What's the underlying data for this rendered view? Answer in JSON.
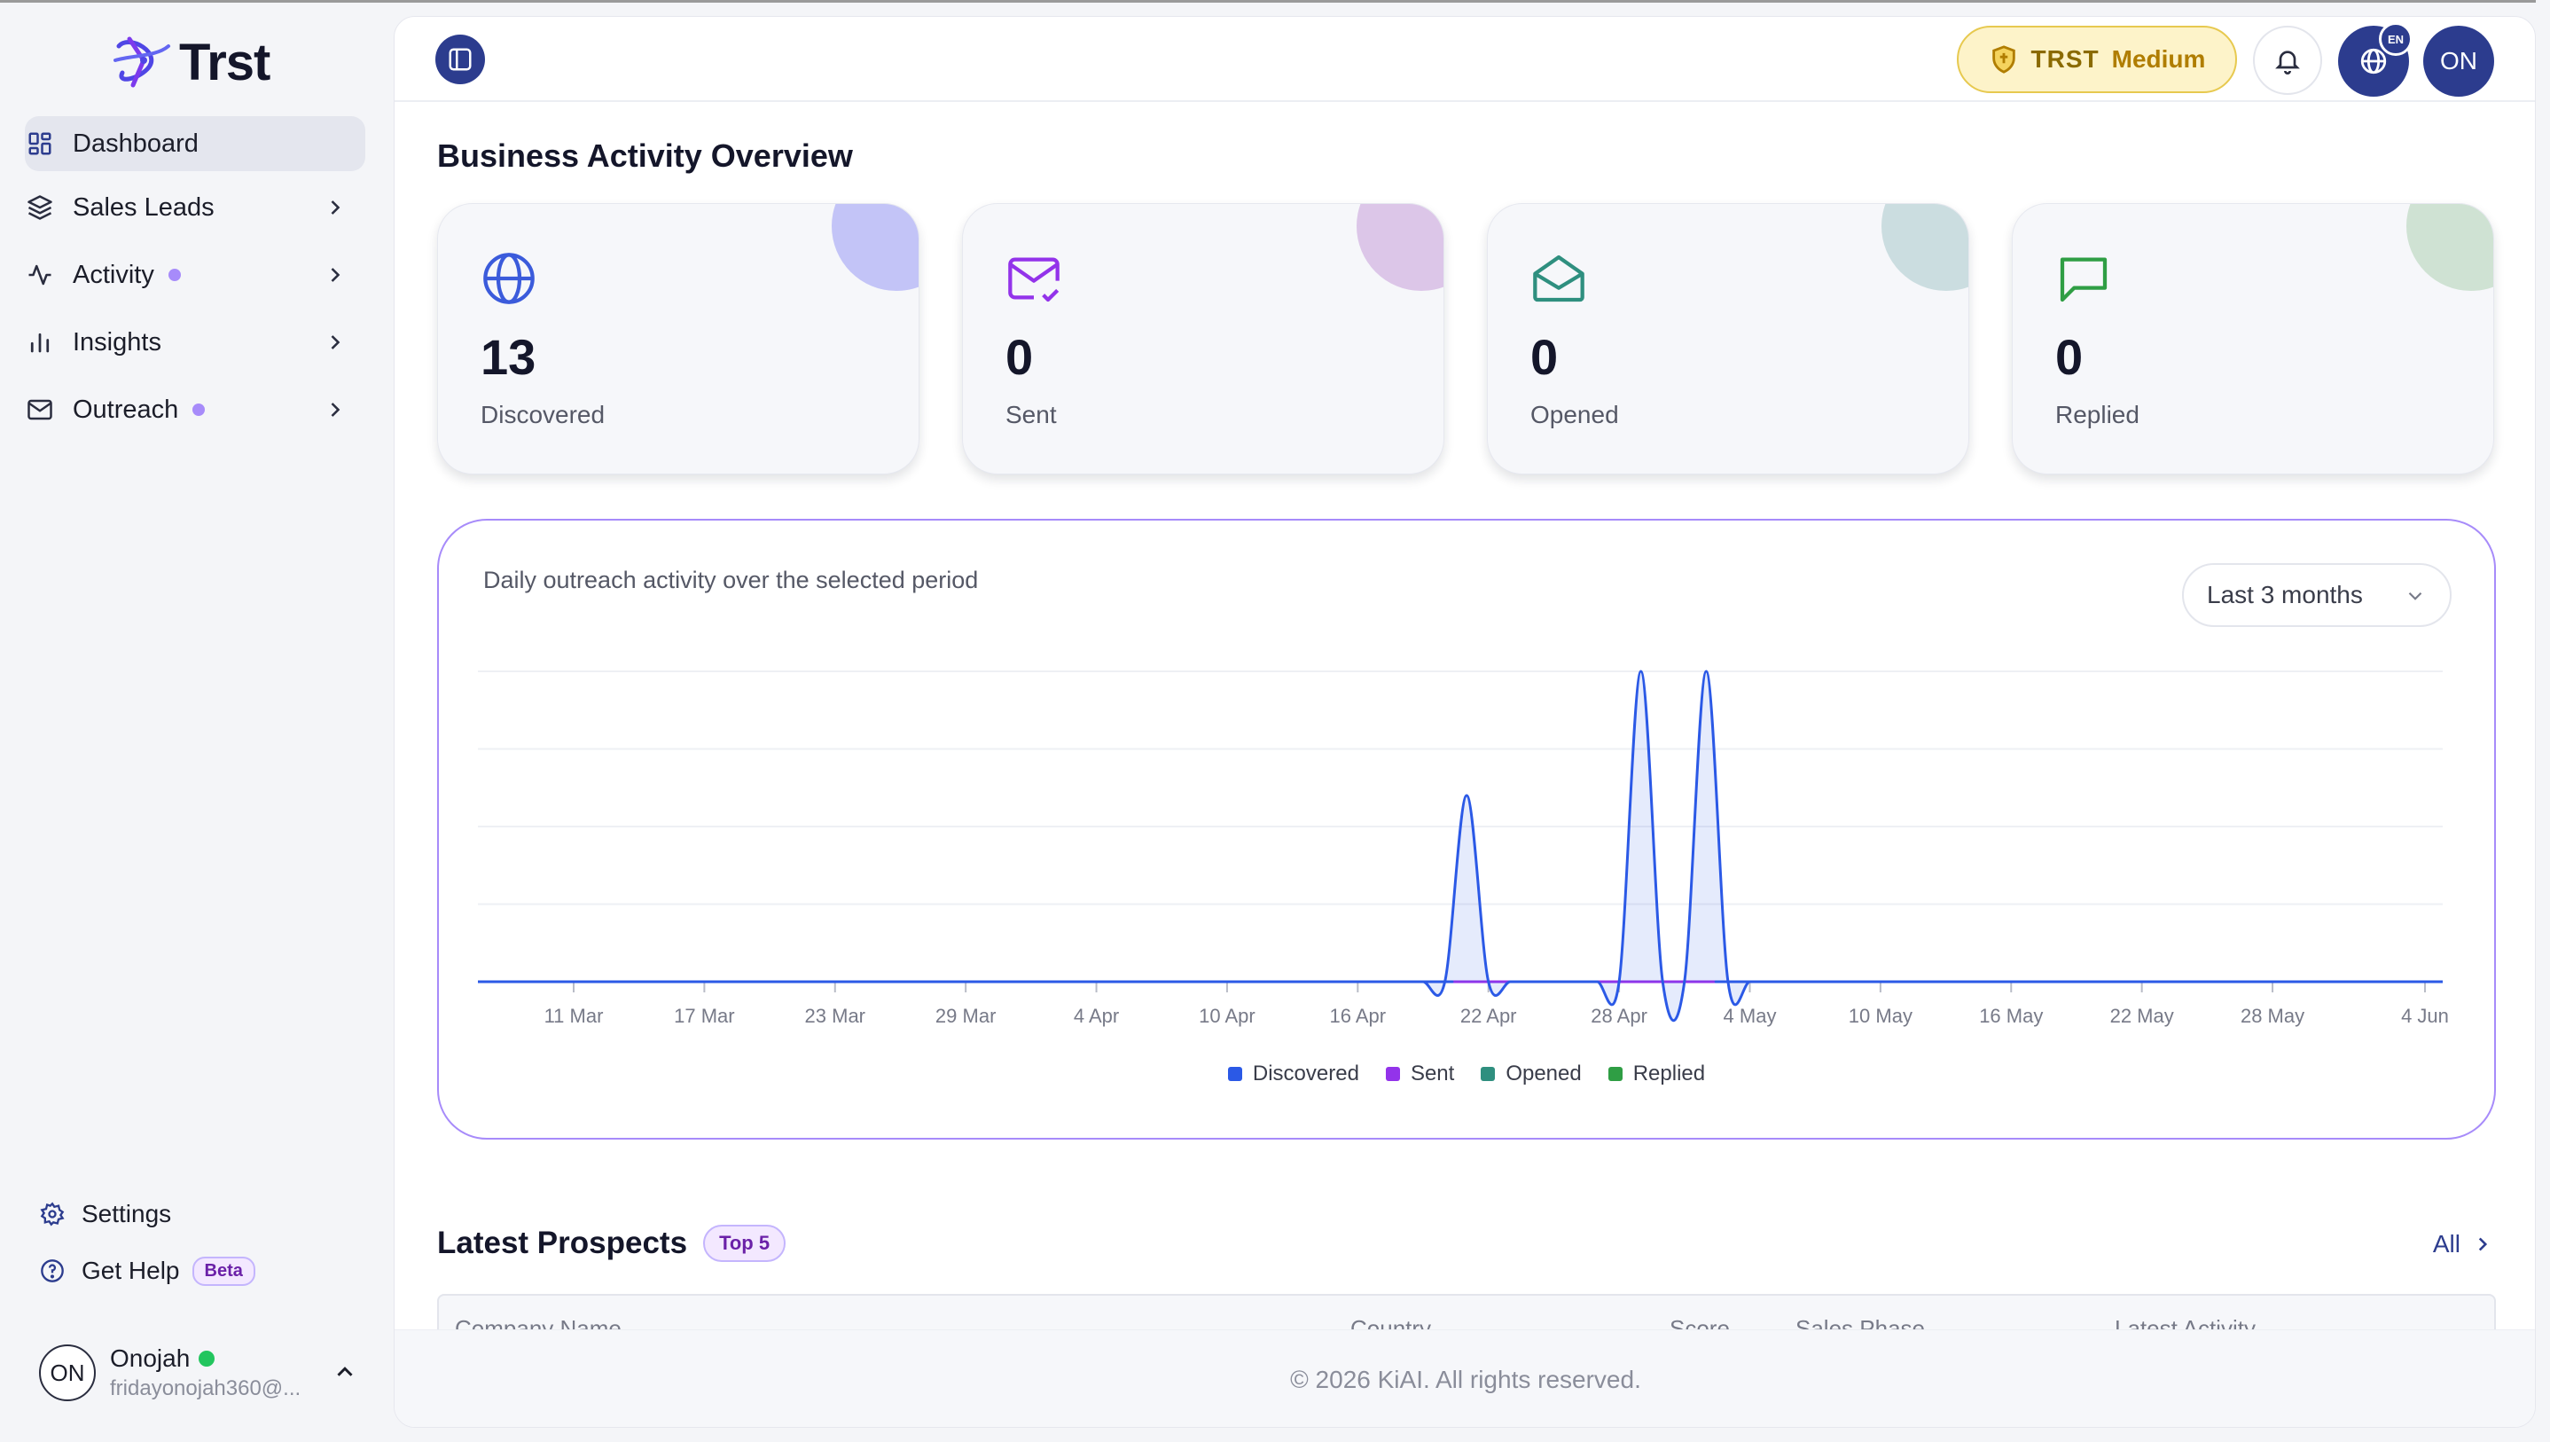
{
  "brand": {
    "name": "Trst"
  },
  "sidebar": {
    "items": [
      {
        "label": "Dashboard",
        "icon": "dashboard-icon",
        "active": true,
        "has_dot": false,
        "has_chevron": false
      },
      {
        "label": "Sales Leads",
        "icon": "layers-icon",
        "active": false,
        "has_dot": false,
        "has_chevron": true
      },
      {
        "label": "Activity",
        "icon": "activity-icon",
        "active": false,
        "has_dot": true,
        "has_chevron": true
      },
      {
        "label": "Insights",
        "icon": "bar-chart-icon",
        "active": false,
        "has_dot": false,
        "has_chevron": true
      },
      {
        "label": "Outreach",
        "icon": "mail-icon",
        "active": false,
        "has_dot": true,
        "has_chevron": true
      }
    ],
    "bottom": {
      "settings": "Settings",
      "help": "Get Help",
      "help_badge": "Beta"
    },
    "user": {
      "initials": "ON",
      "name": "Onojah",
      "email": "fridayonojah360@..."
    }
  },
  "header": {
    "plan_name": "TRST",
    "plan_tier": "Medium",
    "lang_code": "EN",
    "avatar_initials": "ON"
  },
  "overview": {
    "title": "Business Activity Overview",
    "cards": [
      {
        "value": "13",
        "label": "Discovered",
        "icon": "globe-icon",
        "accent": "#3b5bdb",
        "blob": "#c3c4f7"
      },
      {
        "value": "0",
        "label": "Sent",
        "icon": "mail-check-icon",
        "accent": "#9333ea",
        "blob": "#dcc6e8"
      },
      {
        "value": "0",
        "label": "Opened",
        "icon": "mail-open-icon",
        "accent": "#2f8f7f",
        "blob": "#cbdde0"
      },
      {
        "value": "0",
        "label": "Replied",
        "icon": "message-square-icon",
        "accent": "#2f9e44",
        "blob": "#cfe2d3"
      }
    ]
  },
  "chart_panel": {
    "subtitle": "Daily outreach activity over the selected period",
    "period": "Last 3 months"
  },
  "chart_data": {
    "type": "area",
    "x_ticks": [
      "11 Mar",
      "17 Mar",
      "23 Mar",
      "29 Mar",
      "4 Apr",
      "10 Apr",
      "16 Apr",
      "22 Apr",
      "28 Apr",
      "4 May",
      "10 May",
      "16 May",
      "22 May",
      "28 May",
      "4 Jun"
    ],
    "x": [
      "17 Apr",
      "18 Apr",
      "19 Apr",
      "20 Apr",
      "21 Apr",
      "22 Apr",
      "23 Apr",
      "24 Apr",
      "25 Apr",
      "26 Apr",
      "27 Apr",
      "28 Apr",
      "29 Apr",
      "30 Apr",
      "1 May",
      "2 May",
      "3 May",
      "4 May",
      "5 May"
    ],
    "series": [
      {
        "name": "Discovered",
        "color": "#2b59e6",
        "values": [
          0,
          0,
          0,
          0,
          3,
          0,
          0,
          0,
          0,
          0,
          0,
          0,
          5,
          0,
          0,
          5,
          0,
          0,
          0
        ]
      },
      {
        "name": "Sent",
        "color": "#9333ea",
        "values": [
          0,
          0,
          0,
          0,
          0,
          0,
          0,
          0,
          0,
          0,
          0,
          0,
          0,
          0,
          0,
          0,
          0,
          0,
          0
        ]
      },
      {
        "name": "Opened",
        "color": "#2f8f7f",
        "values": [
          0,
          0,
          0,
          0,
          0,
          0,
          0,
          0,
          0,
          0,
          0,
          0,
          0,
          0,
          0,
          0,
          0,
          0,
          0
        ]
      },
      {
        "name": "Replied",
        "color": "#2f9e44",
        "values": [
          0,
          0,
          0,
          0,
          0,
          0,
          0,
          0,
          0,
          0,
          0,
          0,
          0,
          0,
          0,
          0,
          0,
          0,
          0
        ]
      }
    ],
    "grid": true,
    "legend": "bottom-center"
  },
  "prospects": {
    "title": "Latest Prospects",
    "badge": "Top 5",
    "all_label": "All",
    "columns": [
      "Company Name",
      "Country",
      "Score",
      "Sales Phase",
      "Latest Activity"
    ]
  },
  "footer": {
    "text": "© 2026 KiAI. All rights reserved."
  }
}
